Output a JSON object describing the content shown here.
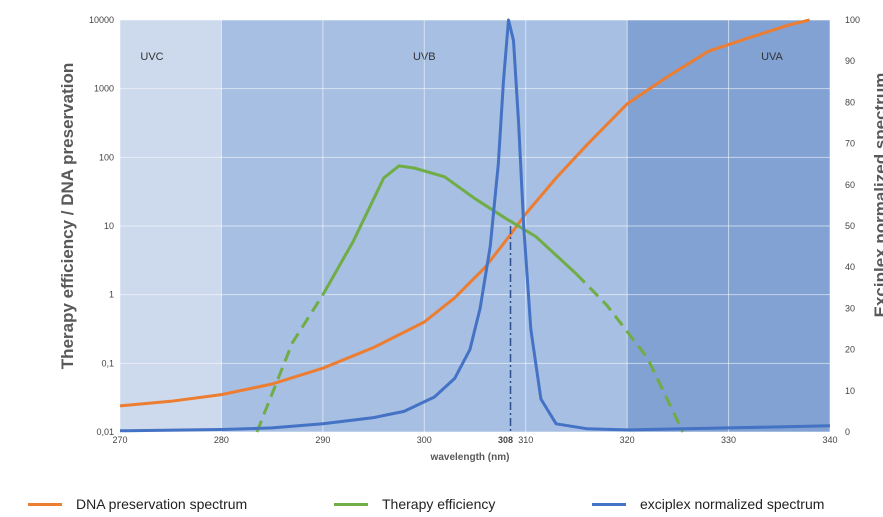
{
  "chart_data": {
    "type": "line",
    "xlabel": "wavelength (nm)",
    "ylabel_left": "Therapy efficiency / DNA preservation",
    "ylabel_right": "Exciplex normalized spectrum",
    "x_ticks": [
      "270",
      "280",
      "290",
      "300",
      "310",
      "320",
      "330",
      "340"
    ],
    "y_left_ticks": [
      "0,01",
      "0,1",
      "1",
      "10",
      "100",
      "1000",
      "10000"
    ],
    "y_right_ticks": [
      "0",
      "10",
      "20",
      "30",
      "40",
      "50",
      "60",
      "70",
      "80",
      "90",
      "100"
    ],
    "x_range": [
      270,
      340
    ],
    "y_left_range": [
      0.01,
      10000
    ],
    "y_left_scale": "log",
    "y_right_range": [
      0,
      100
    ],
    "grid": true,
    "legend_position": "bottom",
    "regions": [
      {
        "label": "UVC",
        "x_range": [
          270,
          280
        ],
        "color": "#cdd9ec"
      },
      {
        "label": "UVB",
        "x_range": [
          280,
          320
        ],
        "color": "#a6bfe2"
      },
      {
        "label": "UVA",
        "x_range": [
          320,
          340
        ],
        "color": "#81a2d3"
      }
    ],
    "annotation": {
      "label": "308",
      "x": 308.5
    },
    "series": [
      {
        "name": "DNA preservation spectrum",
        "color": "#ed7d31",
        "axis": "left",
        "points": [
          [
            270,
            0.024
          ],
          [
            275,
            0.028
          ],
          [
            280,
            0.035
          ],
          [
            285,
            0.05
          ],
          [
            290,
            0.085
          ],
          [
            295,
            0.17
          ],
          [
            300,
            0.4
          ],
          [
            303,
            0.9
          ],
          [
            306,
            2.5
          ],
          [
            308,
            6
          ],
          [
            310,
            15
          ],
          [
            313,
            50
          ],
          [
            316,
            150
          ],
          [
            320,
            600
          ],
          [
            324,
            1500
          ],
          [
            328,
            3500
          ],
          [
            332,
            5500
          ],
          [
            336,
            8500
          ],
          [
            338,
            10000
          ]
        ]
      },
      {
        "name": "Therapy efficiency",
        "color": "#70ad47",
        "axis": "left",
        "dashed_ranges": [
          [
            283.5,
            290
          ],
          [
            315,
            325.5
          ]
        ],
        "points": [
          [
            283.5,
            0.01
          ],
          [
            287,
            0.2
          ],
          [
            290,
            1
          ],
          [
            293,
            6
          ],
          [
            296,
            50
          ],
          [
            297.5,
            75
          ],
          [
            299,
            70
          ],
          [
            302,
            52
          ],
          [
            305,
            25
          ],
          [
            308,
            13
          ],
          [
            311,
            7
          ],
          [
            315,
            2
          ],
          [
            318,
            0.7
          ],
          [
            322,
            0.12
          ],
          [
            325.5,
            0.01
          ]
        ]
      },
      {
        "name": "exciplex normalized spectrum",
        "color": "#4472c4",
        "axis": "right",
        "points": [
          [
            270,
            0.3
          ],
          [
            280,
            0.6
          ],
          [
            285,
            1
          ],
          [
            290,
            2
          ],
          [
            295,
            3.5
          ],
          [
            298,
            5
          ],
          [
            301,
            8.5
          ],
          [
            303,
            13
          ],
          [
            304.5,
            20
          ],
          [
            305.5,
            30
          ],
          [
            306.5,
            45
          ],
          [
            307.3,
            65
          ],
          [
            307.8,
            85
          ],
          [
            308.3,
            100
          ],
          [
            308.8,
            95
          ],
          [
            309.3,
            75
          ],
          [
            309.8,
            50
          ],
          [
            310.5,
            25
          ],
          [
            311.5,
            8
          ],
          [
            313,
            2
          ],
          [
            316,
            0.8
          ],
          [
            320,
            0.5
          ],
          [
            330,
            1
          ],
          [
            340,
            1.5
          ]
        ]
      }
    ]
  }
}
